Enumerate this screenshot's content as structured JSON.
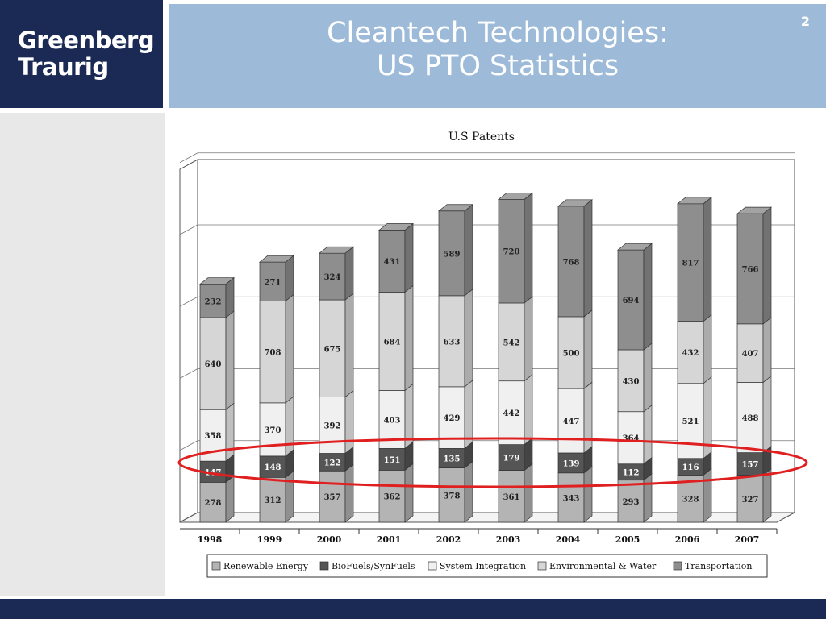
{
  "logo": {
    "line1": "Greenberg",
    "line2": "Traurig"
  },
  "header": {
    "title_line1": "Cleantech Technologies:",
    "title_line2": "US PTO Statistics",
    "page_number": "2"
  },
  "colors": {
    "logo_bg": "#1a2a55",
    "header_bg": "#9dbbd9",
    "footer_bg": "#1a2a55",
    "highlight": "#e02020"
  },
  "chart_data": {
    "type": "bar",
    "stacked": true,
    "three_d": true,
    "title": "U.S Patents",
    "categories": [
      "1998",
      "1999",
      "2000",
      "2001",
      "2002",
      "2003",
      "2004",
      "2005",
      "2006",
      "2007"
    ],
    "series": [
      {
        "name": "Renewable Energy",
        "color": "#b4b4b4",
        "values": [
          278,
          312,
          357,
          362,
          378,
          361,
          343,
          293,
          328,
          327
        ]
      },
      {
        "name": "BioFuels/SynFuels",
        "color": "#555555",
        "values": [
          147,
          148,
          122,
          151,
          135,
          179,
          139,
          112,
          116,
          157
        ]
      },
      {
        "name": "System Integration",
        "color": "#f0f0f0",
        "values": [
          358,
          370,
          392,
          403,
          429,
          442,
          447,
          364,
          521,
          488
        ]
      },
      {
        "name": "Environmental & Water",
        "color": "#d6d6d6",
        "values": [
          640,
          708,
          675,
          684,
          633,
          542,
          500,
          430,
          432,
          407
        ]
      },
      {
        "name": "Transportation",
        "color": "#8e8e8e",
        "values": [
          232,
          271,
          324,
          431,
          589,
          720,
          768,
          694,
          817,
          766
        ]
      }
    ],
    "legend_position": "bottom",
    "highlighted_series": "BioFuels/SynFuels"
  }
}
